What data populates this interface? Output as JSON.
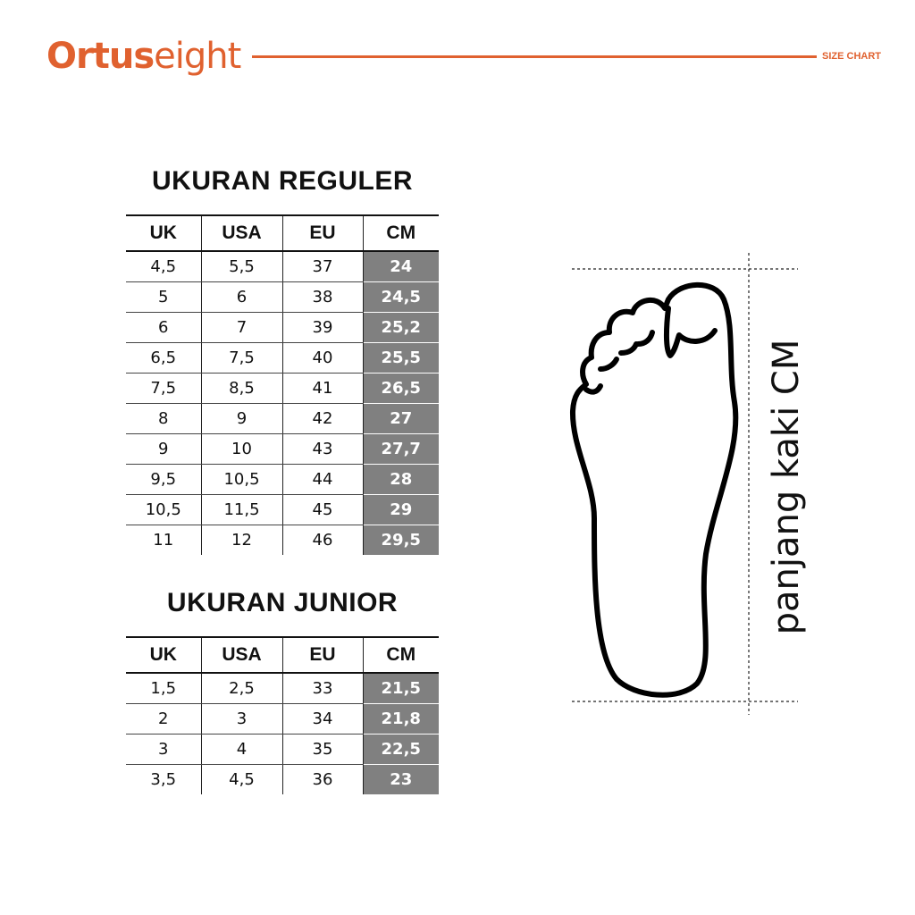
{
  "header": {
    "brand_bold": "Ortus",
    "brand_light": "eight",
    "label": "SIZE CHART",
    "accent_color": "#e0612f"
  },
  "regular": {
    "title": "UKURAN REGULER",
    "columns": [
      "UK",
      "USA",
      "EU",
      "CM"
    ],
    "rows": [
      [
        "4,5",
        "5,5",
        "37",
        "24"
      ],
      [
        "5",
        "6",
        "38",
        "24,5"
      ],
      [
        "6",
        "7",
        "39",
        "25,2"
      ],
      [
        "6,5",
        "7,5",
        "40",
        "25,5"
      ],
      [
        "7,5",
        "8,5",
        "41",
        "26,5"
      ],
      [
        "8",
        "9",
        "42",
        "27"
      ],
      [
        "9",
        "10",
        "43",
        "27,7"
      ],
      [
        "9,5",
        "10,5",
        "44",
        "28"
      ],
      [
        "10,5",
        "11,5",
        "45",
        "29"
      ],
      [
        "11",
        "12",
        "46",
        "29,5"
      ]
    ]
  },
  "junior": {
    "title": "UKURAN JUNIOR",
    "columns": [
      "UK",
      "USA",
      "EU",
      "CM"
    ],
    "rows": [
      [
        "1,5",
        "2,5",
        "33",
        "21,5"
      ],
      [
        "2",
        "3",
        "34",
        "21,8"
      ],
      [
        "3",
        "4",
        "35",
        "22,5"
      ],
      [
        "3,5",
        "4,5",
        "36",
        "23"
      ]
    ]
  },
  "diagram": {
    "label": "panjang kaki CM",
    "icon": "foot-outline-icon"
  }
}
